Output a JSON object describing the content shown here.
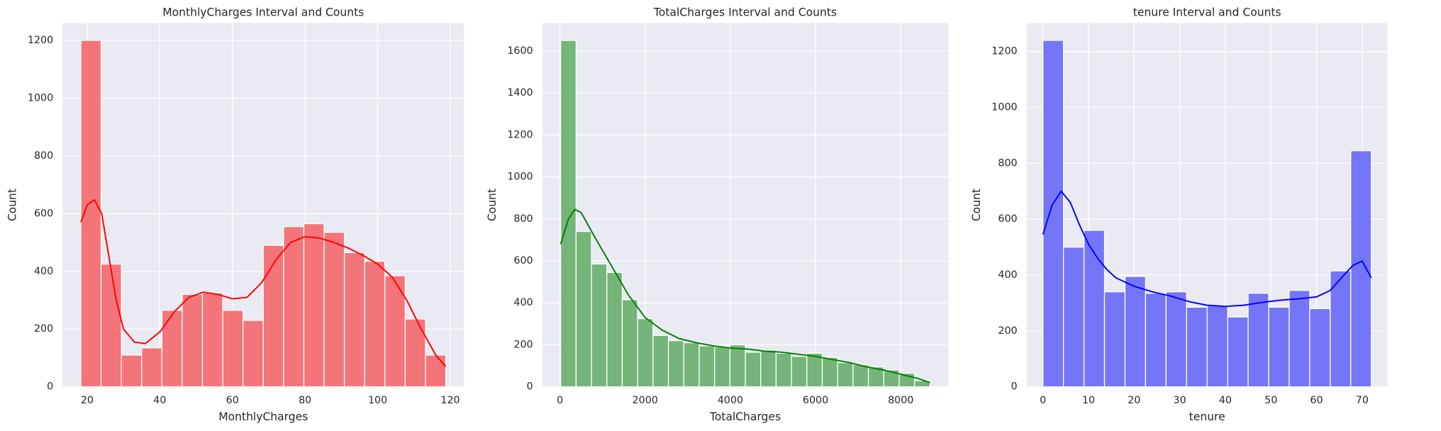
{
  "chart_data": [
    {
      "type": "histogram",
      "title": "MonthlyCharges Interval and Counts",
      "xlabel": "MonthlyCharges",
      "ylabel": "Count",
      "bins": [
        18.25,
        23.83,
        29.42,
        35.0,
        40.58,
        46.17,
        51.75,
        57.33,
        62.92,
        68.5,
        74.08,
        79.67,
        85.25,
        90.83,
        96.42,
        102.0,
        107.58,
        113.17,
        118.75
      ],
      "values": [
        1200,
        425,
        110,
        135,
        265,
        320,
        325,
        265,
        230,
        490,
        555,
        565,
        535,
        465,
        435,
        385,
        235,
        110
      ],
      "color": "#f47579",
      "kde": {
        "color": "#ff0000",
        "x": [
          18.25,
          20,
          22,
          24,
          26,
          28,
          30,
          33,
          36,
          40,
          44,
          48,
          52,
          56,
          60,
          64,
          68,
          72,
          76,
          80,
          84,
          88,
          92,
          96,
          100,
          104,
          108,
          112,
          116,
          118.75
        ],
        "values": [
          570,
          630,
          648,
          600,
          450,
          300,
          200,
          155,
          150,
          190,
          260,
          310,
          328,
          320,
          305,
          310,
          360,
          440,
          500,
          520,
          515,
          500,
          480,
          455,
          425,
          380,
          300,
          200,
          110,
          70
        ]
      },
      "xlim": [
        13.2,
        123.8
      ],
      "ylim": [
        0,
        1260
      ],
      "xticks": [
        20,
        40,
        60,
        80,
        100,
        120
      ],
      "yticks": [
        0,
        200,
        400,
        600,
        800,
        1000,
        1200
      ],
      "grid": true
    },
    {
      "type": "histogram",
      "title": "TotalCharges Interval and Counts",
      "xlabel": "TotalCharges",
      "ylabel": "Count",
      "bins": [
        18.8,
        379.9,
        741.0,
        1102.0,
        1463.1,
        1824.2,
        2185.3,
        2546.4,
        2907.4,
        3268.5,
        3629.6,
        3990.7,
        4351.8,
        4712.8,
        5073.9,
        5435.0,
        5796.1,
        6157.2,
        6518.2,
        6879.3,
        7240.4,
        7601.5,
        7962.6,
        8323.6,
        8684.7
      ],
      "values": [
        1650,
        740,
        585,
        545,
        415,
        325,
        245,
        220,
        210,
        195,
        190,
        200,
        165,
        175,
        160,
        145,
        160,
        140,
        115,
        105,
        95,
        80,
        65,
        30
      ],
      "color": "#75b579",
      "kde": {
        "color": "#008000",
        "x": [
          18.8,
          200,
          350,
          500,
          800,
          1200,
          1600,
          2000,
          2400,
          2800,
          3200,
          3600,
          4000,
          4400,
          4800,
          5200,
          5600,
          6000,
          6400,
          6800,
          7200,
          7600,
          8000,
          8400,
          8684.7
        ],
        "values": [
          680,
          800,
          845,
          830,
          720,
          580,
          440,
          330,
          270,
          230,
          210,
          195,
          185,
          180,
          170,
          165,
          155,
          145,
          130,
          115,
          95,
          80,
          60,
          40,
          20
        ]
      },
      "xlim": [
        -415,
        9118
      ],
      "ylim": [
        0,
        1733
      ],
      "xticks": [
        0,
        2000,
        4000,
        6000,
        8000
      ],
      "yticks": [
        0,
        200,
        400,
        600,
        800,
        1000,
        1200,
        1400,
        1600
      ],
      "grid": true
    },
    {
      "type": "histogram",
      "title": "tenure Interval and Counts",
      "xlabel": "tenure",
      "ylabel": "Count",
      "bins": [
        0,
        4.5,
        9,
        13.5,
        18,
        22.5,
        27,
        31.5,
        36,
        40.5,
        45,
        49.5,
        54,
        58.5,
        63,
        67.5,
        72
      ],
      "values": [
        1240,
        500,
        560,
        340,
        395,
        335,
        340,
        285,
        290,
        250,
        335,
        285,
        345,
        280,
        415,
        845
      ],
      "color": "#7575f8",
      "kde": {
        "color": "#0000ff",
        "x": [
          0,
          2,
          4,
          6,
          8,
          10,
          12,
          14,
          16,
          18,
          20,
          24,
          28,
          32,
          36,
          40,
          44,
          48,
          52,
          56,
          60,
          63,
          66,
          68,
          70,
          72
        ],
        "values": [
          545,
          650,
          700,
          660,
          580,
          510,
          460,
          420,
          390,
          375,
          360,
          340,
          325,
          305,
          292,
          288,
          292,
          302,
          310,
          315,
          322,
          345,
          400,
          435,
          450,
          390
        ]
      },
      "xlim": [
        -3.6,
        75.6
      ],
      "ylim": [
        0,
        1302
      ],
      "xticks": [
        0,
        10,
        20,
        30,
        40,
        50,
        60,
        70
      ],
      "yticks": [
        0,
        200,
        400,
        600,
        800,
        1000,
        1200
      ],
      "grid": true
    }
  ]
}
